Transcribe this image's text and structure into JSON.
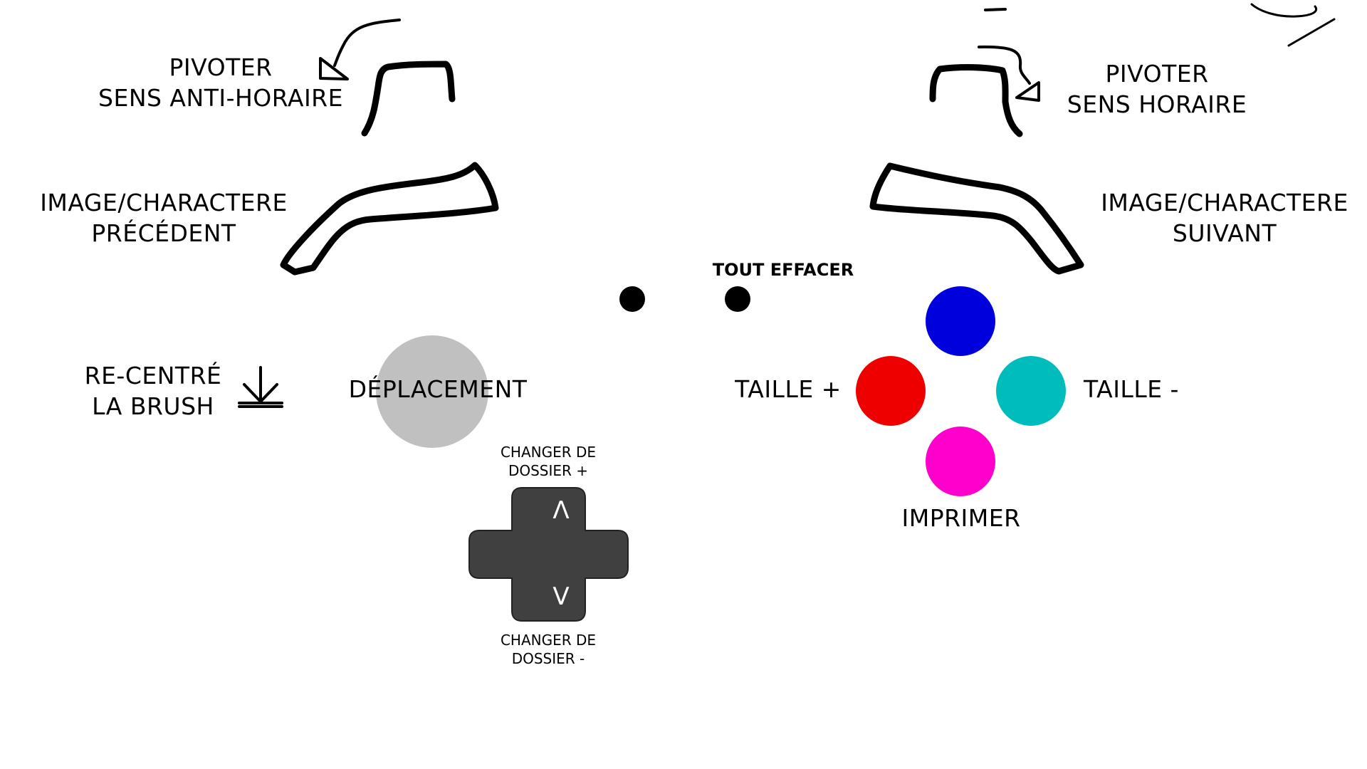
{
  "labels": {
    "rotate_ccw": [
      "PIVOTER",
      "SENS ANTI-HORAIRE"
    ],
    "rotate_cw": [
      "PIVOTER",
      "SENS HORAIRE"
    ],
    "prev_image": [
      "IMAGE/CHARACTERE",
      "PRÉCÉDENT"
    ],
    "next_image": [
      "IMAGE/CHARACTERE",
      "SUIVANT"
    ],
    "clear_all": "TOUT EFFACER",
    "recenter": [
      "RE-CENTRÉ",
      "LA BRUSH"
    ],
    "move": "DÉPLACEMENT",
    "size_plus": "TAILLE +",
    "size_minus": "TAILLE -",
    "print": "IMPRIMER",
    "folder_next": [
      "CHANGER DE",
      "DOSSIER +"
    ],
    "folder_prev": [
      "CHANGER DE",
      "DOSSIER -"
    ]
  },
  "dpad": {
    "up_glyph": "Λ",
    "down_glyph": "V"
  },
  "icons": {
    "recenter": "download-arrow-icon",
    "rotate_ccw": "curved-arrow-left-icon",
    "rotate_cw": "curved-arrow-right-icon"
  },
  "colors": {
    "button_top": "#0000dd",
    "button_left": "#ee0000",
    "button_right": "#00bcbc",
    "button_bottom": "#ff00cc",
    "joystick": "#c0c0c0",
    "dpad": "#404040",
    "outline": "#000000"
  }
}
